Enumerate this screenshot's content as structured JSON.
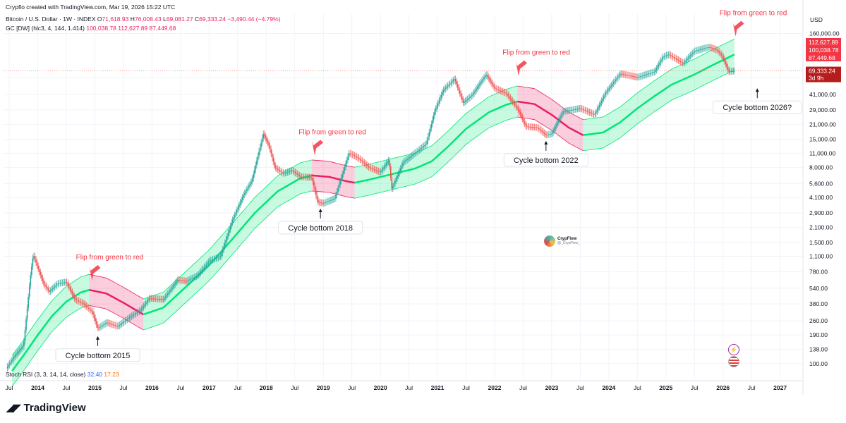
{
  "header": {
    "created_by": "Crypflo created with TradingView.com, Mar 19, 2026 15:22 UTC",
    "symbol": "Bitcoin / U.S. Dollar · 1W · INDEX",
    "o_label": "O",
    "o_value": "71,618.93",
    "h_label": "H",
    "h_value": "76,008.43",
    "l_label": "L",
    "l_value": "69,081.27",
    "c_label": "C",
    "c_value": "69,333.24",
    "change": "−3,490.44 (−4.79%)",
    "indicator_name": "GC [DW] (hlc3, 4, 144, 1.414)",
    "indicator_values": "100,038.78  112,627.89  87,449.68",
    "stoch_name": "Stoch RSI (3, 3, 14, 14, close)",
    "stoch_k": "32.40",
    "stoch_d": "17.23"
  },
  "axis": {
    "currency": "USD",
    "price_tags": [
      "112,627.89",
      "100,038.78",
      "87,449.68"
    ],
    "last_price": "69,333.24",
    "countdown": "3d 9h"
  },
  "annotations": {
    "flips": [
      "Flip from green to red",
      "Flip from green to red",
      "Flip from green to red",
      "Flip from green to red"
    ],
    "cycles": [
      "Cycle bottom 2015",
      "Cycle bottom 2018",
      "Cycle bottom 2022",
      "Cycle bottom 2026?"
    ]
  },
  "watermark": {
    "name": "CrypFlow",
    "handle": "@_CrypFlow_"
  },
  "logo": {
    "text": "TradingView"
  },
  "colors": {
    "up": "#26a69a",
    "down": "#ef5350",
    "band_green": "#00e676",
    "band_red": "#e91e63",
    "annotation": "#f23645"
  },
  "chart_data": {
    "type": "line",
    "title": "Bitcoin / U.S. Dollar · 1W · INDEX",
    "y_scale": "log",
    "ylim": [
      80,
      180000
    ],
    "y_ticks": [
      100,
      138,
      190,
      260,
      380,
      540,
      780,
      1100,
      1500,
      2100,
      2900,
      4100,
      5600,
      8000,
      11000,
      15000,
      21000,
      29000,
      41000,
      60000,
      160000
    ],
    "y_tick_labels": [
      "100.00",
      "138.00",
      "190.00",
      "260.00",
      "380.00",
      "540.00",
      "780.00",
      "1,100.00",
      "1,500.00",
      "2,100.00",
      "2,900.00",
      "4,100.00",
      "5,600.00",
      "8,000.00",
      "11,000.00",
      "15,000.00",
      "21,000.00",
      "29,000.00",
      "41,000.00",
      "60,000.00",
      "160,000.00"
    ],
    "x_ticks": [
      2013.5,
      2014,
      2014.5,
      2015,
      2015.5,
      2016,
      2016.5,
      2017,
      2017.5,
      2018,
      2018.5,
      2019,
      2019.5,
      2020,
      2020.5,
      2021,
      2021.5,
      2022,
      2022.5,
      2023,
      2023.5,
      2024,
      2024.5,
      2025,
      2025.5,
      2026,
      2026.5,
      2027
    ],
    "x_tick_labels": [
      "Jul",
      "2014",
      "Jul",
      "2015",
      "Jul",
      "2016",
      "Jul",
      "2017",
      "Jul",
      "2018",
      "Jul",
      "2019",
      "Jul",
      "2020",
      "Jul",
      "2021",
      "Jul",
      "2022",
      "Jul",
      "2023",
      "Jul",
      "2024",
      "Jul",
      "2025",
      "Jul",
      "2026",
      "Jul",
      "2027"
    ],
    "price": {
      "x": [
        2013.45,
        2013.6,
        2013.75,
        2013.87,
        2013.92,
        2014.0,
        2014.1,
        2014.2,
        2014.35,
        2014.5,
        2014.65,
        2014.8,
        2014.95,
        2015.05,
        2015.2,
        2015.4,
        2015.6,
        2015.8,
        2015.95,
        2016.2,
        2016.45,
        2016.6,
        2016.8,
        2017.0,
        2017.2,
        2017.4,
        2017.6,
        2017.75,
        2017.95,
        2018.05,
        2018.15,
        2018.3,
        2018.45,
        2018.6,
        2018.8,
        2018.9,
        2019.0,
        2019.2,
        2019.45,
        2019.6,
        2019.8,
        2020.0,
        2020.15,
        2020.2,
        2020.4,
        2020.6,
        2020.8,
        2020.95,
        2021.1,
        2021.3,
        2021.45,
        2021.6,
        2021.85,
        2022.0,
        2022.2,
        2022.4,
        2022.55,
        2022.75,
        2022.9,
        2023.0,
        2023.2,
        2023.5,
        2023.75,
        2023.95,
        2024.2,
        2024.5,
        2024.8,
        2024.95,
        2025.05,
        2025.3,
        2025.5,
        2025.75,
        2025.9,
        2026.0,
        2026.1,
        2026.2
      ],
      "y": [
        90,
        120,
        150,
        700,
        1150,
        850,
        600,
        500,
        600,
        620,
        420,
        380,
        320,
        220,
        250,
        230,
        280,
        330,
        430,
        420,
        650,
        630,
        720,
        990,
        1100,
        2400,
        4300,
        6000,
        17000,
        13000,
        8000,
        7000,
        7500,
        6500,
        6400,
        3700,
        3600,
        4000,
        11000,
        10000,
        8000,
        7200,
        9500,
        5000,
        9000,
        11000,
        13500,
        28000,
        45000,
        58000,
        34000,
        40000,
        64000,
        47000,
        42000,
        30000,
        20000,
        19500,
        16500,
        17000,
        28000,
        30000,
        26000,
        43000,
        65000,
        60000,
        68000,
        95000,
        100000,
        82000,
        108000,
        118000,
        110000,
        93000,
        68000,
        69333
      ]
    },
    "band": {
      "x": [
        2013.55,
        2013.75,
        2014.0,
        2014.25,
        2014.5,
        2014.75,
        2014.9,
        2015.2,
        2015.5,
        2015.85,
        2016.2,
        2016.6,
        2017.0,
        2017.4,
        2017.8,
        2018.2,
        2018.6,
        2018.8,
        2019.1,
        2019.4,
        2019.55,
        2019.8,
        2020.2,
        2020.6,
        2020.9,
        2021.2,
        2021.5,
        2021.9,
        2022.2,
        2022.4,
        2022.7,
        2023.0,
        2023.3,
        2023.55,
        2023.9,
        2024.2,
        2024.5,
        2024.8,
        2025.1,
        2025.5,
        2025.8,
        2026.2
      ],
      "y": [
        85,
        120,
        190,
        290,
        400,
        490,
        520,
        480,
        390,
        300,
        350,
        560,
        900,
        1600,
        2900,
        4700,
        6300,
        6700,
        6500,
        5900,
        5700,
        6100,
        6900,
        7800,
        9200,
        13000,
        19000,
        27500,
        32500,
        35000,
        33000,
        26000,
        19500,
        16500,
        17500,
        22000,
        30000,
        39500,
        51000,
        64000,
        78000,
        100000
      ],
      "segments": [
        {
          "from": 2013.55,
          "to": 2014.9,
          "color": "green"
        },
        {
          "from": 2014.9,
          "to": 2015.85,
          "color": "red"
        },
        {
          "from": 2015.85,
          "to": 2018.8,
          "color": "green"
        },
        {
          "from": 2018.8,
          "to": 2019.55,
          "color": "red"
        },
        {
          "from": 2019.55,
          "to": 2022.4,
          "color": "green"
        },
        {
          "from": 2022.4,
          "to": 2023.55,
          "color": "red"
        },
        {
          "from": 2023.55,
          "to": 2026.2,
          "color": "green"
        }
      ],
      "upper_mult": 1.414,
      "lower_mult": 0.707
    },
    "flip_points": [
      {
        "x": 2014.95,
        "y": 640
      },
      {
        "x": 2018.85,
        "y": 10500
      },
      {
        "x": 2022.42,
        "y": 62000
      },
      {
        "x": 2026.22,
        "y": 150000
      }
    ],
    "cycle_bottoms": [
      {
        "x": 2015.05,
        "y": 185
      },
      {
        "x": 2018.95,
        "y": 3200
      },
      {
        "x": 2022.9,
        "y": 14500
      },
      {
        "x": 2026.6,
        "y": 47000
      }
    ],
    "current_price": 69333.24
  }
}
